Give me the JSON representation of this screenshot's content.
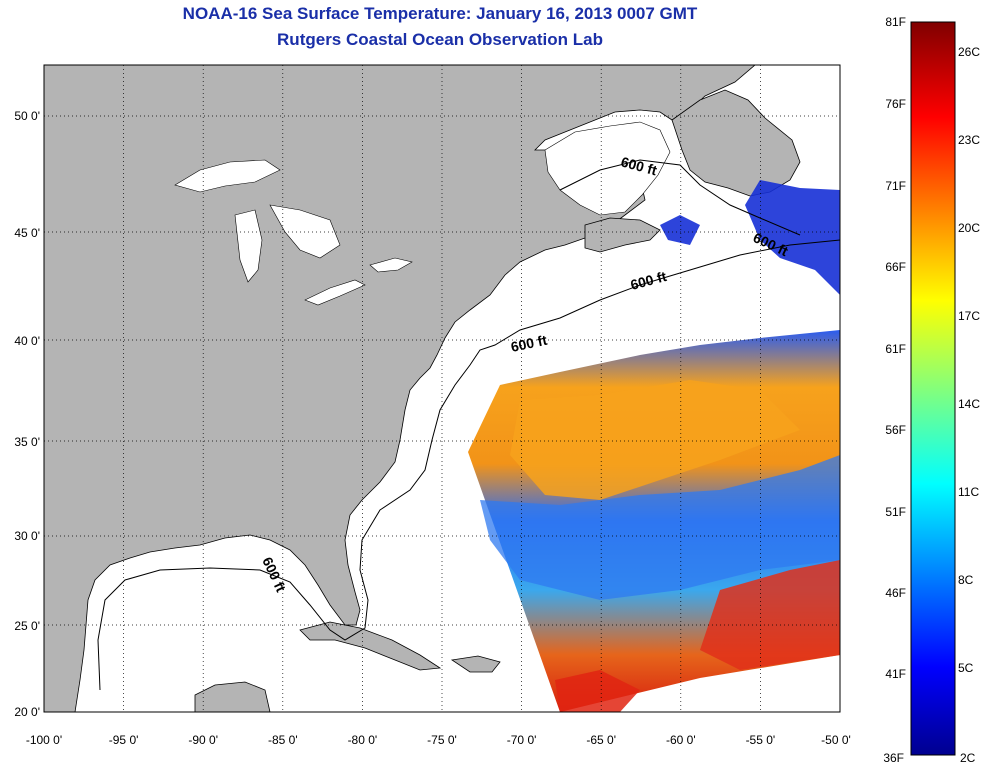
{
  "title_line1": "NOAA-16 Sea Surface Temperature:  January 16, 2013 0007 GMT",
  "title_line2": "Rutgers Coastal Ocean Observation Lab",
  "map": {
    "lon_range": [
      -100,
      -50
    ],
    "lat_range": [
      20,
      52.5
    ],
    "x_ticks": [
      "-100 0'",
      "-95 0'",
      "-90 0'",
      "-85 0'",
      "-80 0'",
      "-75 0'",
      "-70 0'",
      "-65 0'",
      "-60 0'",
      "-55 0'",
      "-50 0'"
    ],
    "y_ticks": [
      "20 0'",
      "25 0'",
      "30 0'",
      "35 0'",
      "40 0'",
      "45 0'",
      "50 0'"
    ],
    "contour_labels": [
      "600 ft",
      "600 ft",
      "600 ft",
      "600 ft",
      "600 ft"
    ],
    "land_color": "#b4b4b4",
    "ocean_color": "#ffffff",
    "grid": true
  },
  "colorbar": {
    "fahrenheit_labels": [
      "81F",
      "76F",
      "71F",
      "66F",
      "61F",
      "56F",
      "51F",
      "46F",
      "41F",
      "36F"
    ],
    "celsius_labels": [
      "26C",
      "23C",
      "20C",
      "17C",
      "14C",
      "11C",
      "8C",
      "5C",
      "2C"
    ],
    "colormap": "jet"
  }
}
